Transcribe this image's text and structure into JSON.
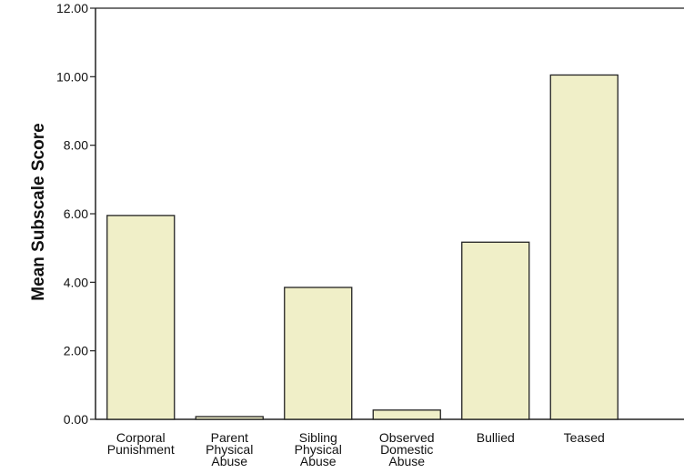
{
  "chart_data": {
    "type": "bar",
    "categories": [
      [
        "Corporal",
        "Punishment"
      ],
      [
        "Parent",
        "Physical",
        "Abuse"
      ],
      [
        "Sibling",
        "Physical",
        "Abuse"
      ],
      [
        "Observed",
        "Domestic",
        "Abuse"
      ],
      [
        "Bullied"
      ],
      [
        "Teased"
      ]
    ],
    "values": [
      5.95,
      0.08,
      3.85,
      0.27,
      5.17,
      10.05
    ],
    "ylabel": "Mean Subscale Score",
    "xlabel": "",
    "ylim": [
      0,
      12
    ],
    "yticks": [
      "0.00",
      "2.00",
      "4.00",
      "6.00",
      "8.00",
      "10.00",
      "12.00"
    ],
    "grid": false,
    "colors": {
      "bar_fill": "#f0efc8",
      "bar_stroke": "#222222",
      "axis": "#222222"
    }
  }
}
